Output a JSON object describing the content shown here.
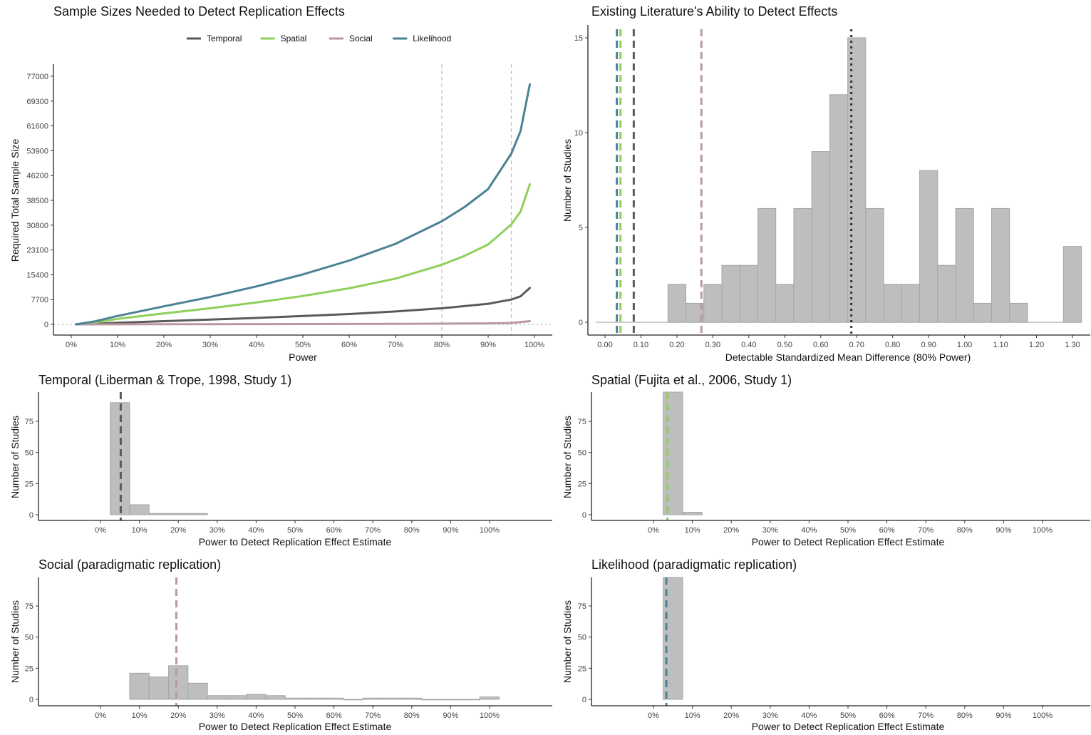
{
  "colors": {
    "temporal": "#5a5a5a",
    "spatial": "#8fcf5a",
    "social": "#b89a9e",
    "likelihood": "#4a8296",
    "bar_fill": "#bebebe",
    "bar_stroke": "#a6a6a6",
    "ref_line": "#bdbdbd",
    "mean_line": "#333333"
  },
  "chart_data": [
    {
      "id": "sample-sizes",
      "type": "line",
      "title": "Sample Sizes Needed to Detect Replication Effects",
      "xlabel": "Power",
      "ylabel": "Required Total Sample Size",
      "xlim": [
        0,
        1
      ],
      "ylim": [
        0,
        77000
      ],
      "x_ticks": [
        0,
        0.1,
        0.2,
        0.3,
        0.4,
        0.5,
        0.6,
        0.7,
        0.8,
        0.9,
        1.0
      ],
      "x_tick_labels": [
        "0%",
        "10%",
        "20%",
        "30%",
        "40%",
        "50%",
        "60%",
        "70%",
        "80%",
        "90%",
        "100%"
      ],
      "y_ticks": [
        0,
        7700,
        15400,
        23100,
        30800,
        38500,
        46200,
        53900,
        61600,
        69300,
        77000
      ],
      "y_tick_labels": [
        "0",
        "7700",
        "15400",
        "23100",
        "30800",
        "38500",
        "46200",
        "53900",
        "61600",
        "69300",
        "77000"
      ],
      "reference_lines_x": [
        0.8,
        0.95
      ],
      "legend_position": "top",
      "grid": false,
      "series": [
        {
          "name": "Temporal",
          "color_key": "temporal",
          "x": [
            0.01,
            0.05,
            0.1,
            0.2,
            0.3,
            0.4,
            0.5,
            0.6,
            0.7,
            0.8,
            0.9,
            0.95,
            0.97,
            0.99
          ],
          "values": [
            0,
            150,
            500,
            1000,
            1500,
            2000,
            2600,
            3200,
            4000,
            5000,
            6400,
            7700,
            8700,
            11300
          ]
        },
        {
          "name": "Spatial",
          "color_key": "spatial",
          "x": [
            0.01,
            0.05,
            0.1,
            0.2,
            0.3,
            0.4,
            0.5,
            0.6,
            0.7,
            0.8,
            0.85,
            0.9,
            0.95,
            0.97,
            0.99
          ],
          "values": [
            0,
            600,
            1700,
            3400,
            5000,
            6800,
            8800,
            11200,
            14200,
            18500,
            21300,
            24800,
            31000,
            35000,
            43500
          ]
        },
        {
          "name": "Social",
          "color_key": "social",
          "x": [
            0.01,
            0.1,
            0.2,
            0.3,
            0.4,
            0.5,
            0.6,
            0.7,
            0.8,
            0.9,
            0.95,
            0.99
          ],
          "values": [
            0,
            20,
            40,
            60,
            80,
            110,
            140,
            170,
            220,
            310,
            440,
            1000
          ]
        },
        {
          "name": "Likelihood",
          "color_key": "likelihood",
          "x": [
            0.01,
            0.05,
            0.1,
            0.2,
            0.3,
            0.4,
            0.5,
            0.6,
            0.7,
            0.8,
            0.85,
            0.9,
            0.95,
            0.97,
            0.99
          ],
          "values": [
            0,
            900,
            2600,
            5600,
            8500,
            11800,
            15500,
            19800,
            25000,
            32000,
            36500,
            42000,
            53000,
            60000,
            74500
          ]
        }
      ]
    },
    {
      "id": "existing-literature",
      "type": "bar",
      "title": "Existing Literature's Ability to Detect Effects",
      "xlabel": "Detectable Standardized Mean Difference (80% Power)",
      "ylabel": "Number of Studies",
      "xlim": [
        -0.05,
        1.35
      ],
      "ylim": [
        0,
        15.5
      ],
      "x_ticks": [
        0,
        0.1,
        0.2,
        0.3,
        0.4,
        0.5,
        0.6,
        0.7,
        0.8,
        0.9,
        1.0,
        1.1,
        1.2,
        1.3
      ],
      "x_tick_labels": [
        "0.00",
        "0.10",
        "0.20",
        "0.30",
        "0.40",
        "0.50",
        "0.60",
        "0.70",
        "0.80",
        "0.90",
        "1.00",
        "1.10",
        "1.20",
        "1.30"
      ],
      "y_ticks": [
        0,
        5,
        10,
        15
      ],
      "y_tick_labels": [
        "0",
        "5",
        "10",
        "15"
      ],
      "bin_width": 0.05,
      "bin_starts": [
        -0.025,
        0.025,
        0.075,
        0.125,
        0.175,
        0.225,
        0.275,
        0.325,
        0.375,
        0.425,
        0.475,
        0.525,
        0.575,
        0.625,
        0.675,
        0.725,
        0.775,
        0.825,
        0.875,
        0.925,
        0.975,
        1.025,
        1.075,
        1.125,
        1.175,
        1.225,
        1.275
      ],
      "values": [
        0,
        0,
        0,
        0,
        2,
        1,
        2,
        3,
        3,
        6,
        2,
        6,
        9,
        12,
        15,
        6,
        2,
        2,
        8,
        3,
        6,
        1,
        6,
        1,
        0,
        0,
        4
      ],
      "vlines": [
        {
          "x": 0.033,
          "color_key": "likelihood",
          "style": "dashed"
        },
        {
          "x": 0.043,
          "color_key": "spatial",
          "style": "dashed"
        },
        {
          "x": 0.08,
          "color_key": "temporal",
          "style": "dashed"
        },
        {
          "x": 0.268,
          "color_key": "social",
          "style": "dashed"
        },
        {
          "x": 0.685,
          "color_key": "mean_line",
          "style": "dotted"
        }
      ]
    },
    {
      "id": "temporal-power",
      "type": "bar",
      "title": "Temporal (Liberman & Trope, 1998, Study 1)",
      "xlabel": "Power to Detect Replication Effect Estimate",
      "ylabel": "Number of Studies",
      "xlim": [
        -0.15,
        1.15
      ],
      "ylim": [
        0,
        97
      ],
      "x_ticks": [
        0,
        0.1,
        0.2,
        0.3,
        0.4,
        0.5,
        0.6,
        0.7,
        0.8,
        0.9,
        1.0
      ],
      "x_tick_labels": [
        "0%",
        "10%",
        "20%",
        "30%",
        "40%",
        "50%",
        "60%",
        "70%",
        "80%",
        "90%",
        "100%"
      ],
      "y_ticks": [
        0,
        25,
        50,
        75
      ],
      "y_tick_labels": [
        "0",
        "25",
        "50",
        "75"
      ],
      "bin_width": 0.05,
      "bin_starts": [
        0.025,
        0.075,
        0.125,
        0.175,
        0.225
      ],
      "values": [
        90,
        8,
        1,
        1,
        1
      ],
      "vline": {
        "x": 0.052,
        "color_key": "temporal"
      }
    },
    {
      "id": "spatial-power",
      "type": "bar",
      "title": "Spatial (Fujita et al., 2006, Study 1)",
      "xlabel": "Power to Detect Replication Effect Estimate",
      "ylabel": "Number of Studies",
      "xlim": [
        -0.15,
        1.15
      ],
      "ylim": [
        0,
        97
      ],
      "x_ticks": [
        0,
        0.1,
        0.2,
        0.3,
        0.4,
        0.5,
        0.6,
        0.7,
        0.8,
        0.9,
        1.0
      ],
      "x_tick_labels": [
        "0%",
        "10%",
        "20%",
        "30%",
        "40%",
        "50%",
        "60%",
        "70%",
        "80%",
        "90%",
        "100%"
      ],
      "y_ticks": [
        0,
        25,
        50,
        75
      ],
      "y_tick_labels": [
        "0",
        "25",
        "50",
        "75"
      ],
      "bin_width": 0.05,
      "bin_starts": [
        0.025,
        0.075
      ],
      "values": [
        100,
        2
      ],
      "vline": {
        "x": 0.036,
        "color_key": "spatial"
      }
    },
    {
      "id": "social-power",
      "type": "bar",
      "title": "Social (paradigmatic replication)",
      "xlabel": "Power to Detect Replication Effect Estimate",
      "ylabel": "Number of Studies",
      "xlim": [
        -0.15,
        1.15
      ],
      "ylim": [
        0,
        97
      ],
      "x_ticks": [
        0,
        0.1,
        0.2,
        0.3,
        0.4,
        0.5,
        0.6,
        0.7,
        0.8,
        0.9,
        1.0
      ],
      "x_tick_labels": [
        "0%",
        "10%",
        "20%",
        "30%",
        "40%",
        "50%",
        "60%",
        "70%",
        "80%",
        "90%",
        "100%"
      ],
      "y_ticks": [
        0,
        25,
        50,
        75
      ],
      "y_tick_labels": [
        "0",
        "25",
        "50",
        "75"
      ],
      "bin_width": 0.05,
      "bin_starts": [
        0.075,
        0.125,
        0.175,
        0.225,
        0.275,
        0.325,
        0.375,
        0.425,
        0.475,
        0.525,
        0.575,
        0.625,
        0.675,
        0.725,
        0.775,
        0.825,
        0.875,
        0.925,
        0.975
      ],
      "values": [
        21,
        18,
        27,
        13,
        3,
        3,
        4,
        3,
        1,
        1,
        1,
        0,
        1,
        1,
        1,
        0,
        0,
        0,
        2
      ],
      "vline": {
        "x": 0.195,
        "color_key": "social"
      }
    },
    {
      "id": "likelihood-power",
      "type": "bar",
      "title": "Likelihood (paradigmatic replication)",
      "xlabel": "Power to Detect Replication Effect Estimate",
      "ylabel": "Number of Studies",
      "xlim": [
        -0.15,
        1.15
      ],
      "ylim": [
        0,
        97
      ],
      "x_ticks": [
        0,
        0.1,
        0.2,
        0.3,
        0.4,
        0.5,
        0.6,
        0.7,
        0.8,
        0.9,
        1.0
      ],
      "x_tick_labels": [
        "0%",
        "10%",
        "20%",
        "30%",
        "40%",
        "50%",
        "60%",
        "70%",
        "80%",
        "90%",
        "100%"
      ],
      "y_ticks": [
        0,
        25,
        50,
        75
      ],
      "y_tick_labels": [
        "0",
        "25",
        "50",
        "75"
      ],
      "bin_width": 0.05,
      "bin_starts": [
        0.025
      ],
      "values": [
        102
      ],
      "vline": {
        "x": 0.033,
        "color_key": "likelihood"
      }
    }
  ]
}
